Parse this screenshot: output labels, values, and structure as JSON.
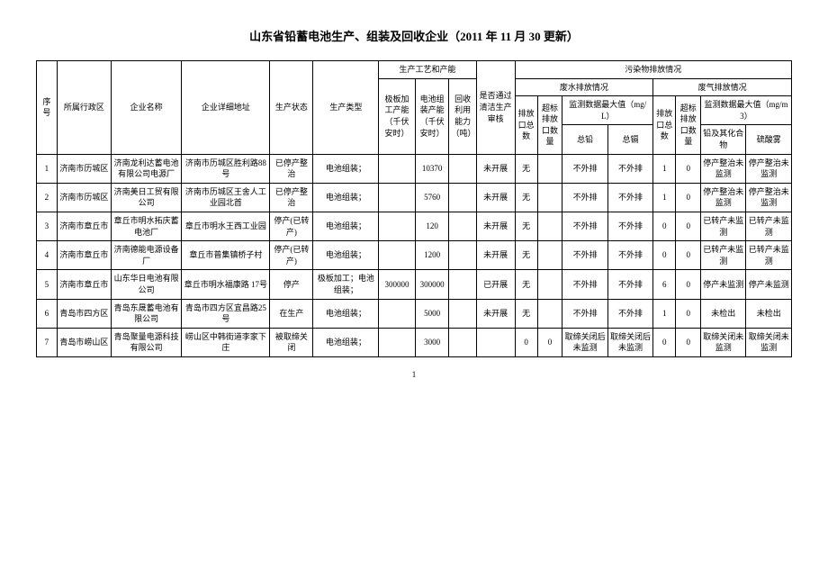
{
  "title": "山东省铅蓄电池生产、组装及回收企业（2011 年 11 月 30 更新）",
  "page_number": "1",
  "headers": {
    "idx": "序号",
    "region": "所属行政区",
    "name": "企业名称",
    "addr": "企业详细地址",
    "status": "生产状态",
    "type": "生产类型",
    "process_group": "生产工艺和产能",
    "plate": "极板加工产能（千伏安时）",
    "assem": "电池组装产能（千伏安时）",
    "recycle": "回收利用能力（吨）",
    "audit": "是否通过清洁生产审核",
    "pollute_group": "污染物排放情况",
    "water_group": "废水排放情况",
    "outw": "排放口总数",
    "overw": "超标排放口数量",
    "maxw_group": "监测数据最大值（mg/L）",
    "max_pb": "总铅",
    "max_cd": "总镉",
    "gas_group": "废气排放情况",
    "outg": "排放口总数",
    "overg": "超标排放口数量",
    "maxg_group": "监测数据最大值（mg/m3）",
    "g_pb": "铅及其化合物",
    "g_so": "硫酸雾"
  },
  "rows": [
    {
      "idx": "1",
      "region": "济南市历城区",
      "name": "济南龙利达蓄电池有限公司电源厂",
      "addr": "济南市历城区胜利路88 号",
      "status": "已停产整治",
      "type": "电池组装；",
      "plate": "",
      "assem": "10370",
      "recycle": "",
      "audit": "未开展",
      "outw": "无",
      "overw": "",
      "max_pb": "不外排",
      "max_cd": "不外排",
      "outg": "1",
      "overg": "0",
      "g_pb": "停产整治未监测",
      "g_so": "停产整治未监测"
    },
    {
      "idx": "2",
      "region": "济南市历城区",
      "name": "济南美日工贸有限公司",
      "addr": "济南市历城区王舍人工业园北首",
      "status": "已停产整治",
      "type": "电池组装；",
      "plate": "",
      "assem": "5760",
      "recycle": "",
      "audit": "未开展",
      "outw": "无",
      "overw": "",
      "max_pb": "不外排",
      "max_cd": "不外排",
      "outg": "1",
      "overg": "0",
      "g_pb": "停产整治未监测",
      "g_so": "停产整治未监测"
    },
    {
      "idx": "3",
      "region": "济南市章丘市",
      "name": "章丘市明水拓庆蓄电池厂",
      "addr": "章丘市明水王西工业园",
      "status": "停产(已转产)",
      "type": "电池组装；",
      "plate": "",
      "assem": "120",
      "recycle": "",
      "audit": "未开展",
      "outw": "无",
      "overw": "",
      "max_pb": "不外排",
      "max_cd": "不外排",
      "outg": "0",
      "overg": "0",
      "g_pb": "已转产未监测",
      "g_so": "已转产未监测"
    },
    {
      "idx": "4",
      "region": "济南市章丘市",
      "name": "济南德能电源设备厂",
      "addr": "章丘市普集镇桥子村",
      "status": "停产(已转产)",
      "type": "电池组装；",
      "plate": "",
      "assem": "1200",
      "recycle": "",
      "audit": "未开展",
      "outw": "无",
      "overw": "",
      "max_pb": "不外排",
      "max_cd": "不外排",
      "outg": "0",
      "overg": "0",
      "g_pb": "已转产未监测",
      "g_so": "已转产未监测"
    },
    {
      "idx": "5",
      "region": "济南市章丘市",
      "name": "山东华日电池有限公司",
      "addr": "章丘市明水福康路 17号",
      "status": "停产",
      "type": "极板加工；电池组装；",
      "plate": "300000",
      "assem": "300000",
      "recycle": "",
      "audit": "已开展",
      "outw": "无",
      "overw": "",
      "max_pb": "不外排",
      "max_cd": "不外排",
      "outg": "6",
      "overg": "0",
      "g_pb": "停产未监测",
      "g_so": "停产未监测"
    },
    {
      "idx": "6",
      "region": "青岛市四方区",
      "name": "青岛东晟蓄电池有限公司",
      "addr": "青岛市四方区宜昌路25 号",
      "status": "在生产",
      "type": "电池组装；",
      "plate": "",
      "assem": "5000",
      "recycle": "",
      "audit": "未开展",
      "outw": "无",
      "overw": "",
      "max_pb": "不外排",
      "max_cd": "不外排",
      "outg": "1",
      "overg": "0",
      "g_pb": "未检出",
      "g_so": "未检出"
    },
    {
      "idx": "7",
      "region": "青岛市崂山区",
      "name": "青岛聚量电源科技有限公司",
      "addr": "崂山区中韩街道李家下庄",
      "status": "被取缔关闭",
      "type": "电池组装；",
      "plate": "",
      "assem": "3000",
      "recycle": "",
      "audit": "",
      "outw": "0",
      "overw": "0",
      "max_pb": "取缔关闭后未监测",
      "max_cd": "取缔关闭后未监测",
      "outg": "0",
      "overg": "0",
      "g_pb": "取缔关闭未监测",
      "g_so": "取缔关闭未监测"
    }
  ]
}
